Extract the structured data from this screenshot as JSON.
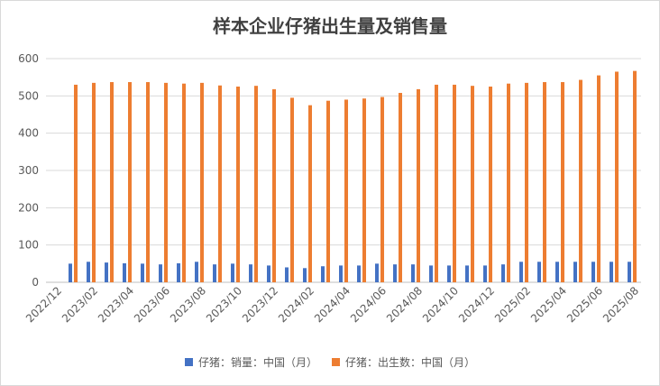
{
  "chart_data": {
    "type": "bar",
    "title": "样本企业仔猪出生量及销售量",
    "xlabel": "",
    "ylabel": "",
    "ylim": [
      0,
      600
    ],
    "yticks": [
      0,
      100,
      200,
      300,
      400,
      500,
      600
    ],
    "grid": true,
    "legend": "bottom",
    "categories": [
      "2022/12",
      "2023/01",
      "2023/02",
      "2023/03",
      "2023/04",
      "2023/05",
      "2023/06",
      "2023/07",
      "2023/08",
      "2023/09",
      "2023/10",
      "2023/11",
      "2023/12",
      "2024/01",
      "2024/02",
      "2024/03",
      "2024/04",
      "2024/05",
      "2024/06",
      "2024/07",
      "2024/08",
      "2024/09",
      "2024/10",
      "2024/11",
      "2024/12",
      "2025/01",
      "2025/02",
      "2025/03",
      "2025/04",
      "2025/05",
      "2025/06",
      "2025/07",
      "2025/08"
    ],
    "xtick_labels": [
      "2022/12",
      "2023/02",
      "2023/04",
      "2023/06",
      "2023/08",
      "2023/10",
      "2023/12",
      "2024/02",
      "2024/04",
      "2024/06",
      "2024/08",
      "2024/10",
      "2024/12",
      "2025/02",
      "2025/04",
      "2025/06",
      "2025/08"
    ],
    "series": [
      {
        "name": "仔猪：销量：中国（月）",
        "color": "#4472C4",
        "values": [
          null,
          50,
          55,
          53,
          51,
          50,
          48,
          51,
          55,
          48,
          50,
          48,
          45,
          40,
          38,
          43,
          45,
          45,
          50,
          48,
          48,
          45,
          45,
          45,
          45,
          48,
          55,
          55,
          55,
          55,
          55,
          55,
          55
        ]
      },
      {
        "name": "仔猪：出生数：中国（月）",
        "color": "#ED7D31",
        "values": [
          null,
          530,
          535,
          537,
          537,
          537,
          535,
          533,
          535,
          528,
          525,
          527,
          518,
          495,
          475,
          487,
          490,
          493,
          497,
          508,
          518,
          530,
          530,
          527,
          525,
          533,
          535,
          537,
          537,
          543,
          555,
          565,
          567
        ]
      }
    ]
  }
}
